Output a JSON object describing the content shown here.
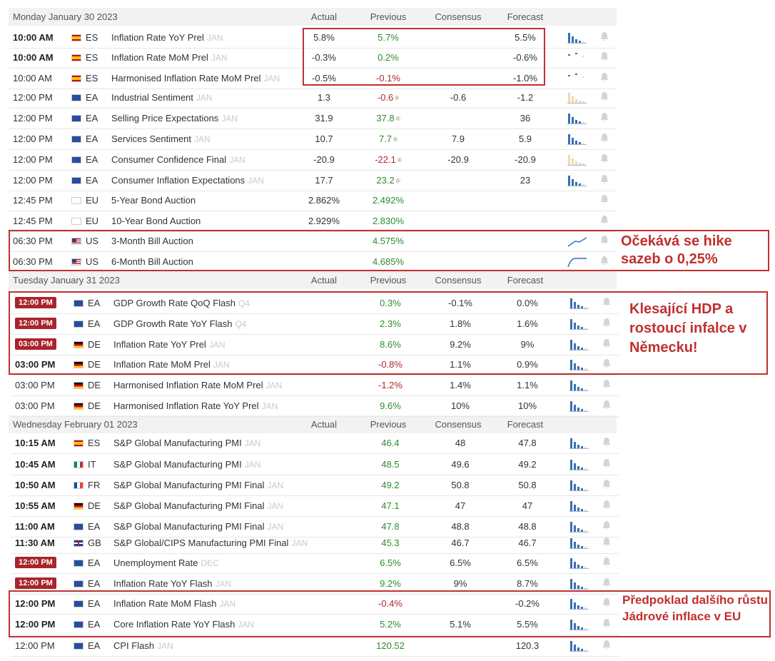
{
  "columns": {
    "actual": "Actual",
    "previous": "Previous",
    "consensus": "Consensus",
    "forecast": "Forecast"
  },
  "days": [
    {
      "title": "Monday January 30 2023"
    },
    {
      "title": "Tuesday January 31 2023"
    },
    {
      "title": "Wednesday February 01 2023"
    }
  ],
  "rows": [
    {
      "time": "10:00 AM",
      "country": "ES",
      "event": "Inflation Rate YoY Prel",
      "ref": "JAN",
      "actual": "5.8%",
      "previous": "5.7%",
      "consensus": "",
      "forecast": "5.5%"
    },
    {
      "time": "10:00 AM",
      "country": "ES",
      "event": "Inflation Rate MoM Prel",
      "ref": "JAN",
      "actual": "-0.3%",
      "previous": "0.2%",
      "consensus": "",
      "forecast": "-0.6%"
    },
    {
      "time": "10:00 AM",
      "country": "ES",
      "event": "Harmonised Inflation Rate MoM Prel",
      "ref": "JAN",
      "actual": "-0.5%",
      "previous": "-0.1%",
      "consensus": "",
      "forecast": "-1.0%"
    },
    {
      "time": "12:00 PM",
      "country": "EA",
      "event": "Industrial Sentiment",
      "ref": "JAN",
      "actual": "1.3",
      "previous": "-0.6",
      "consensus": "-0.6",
      "forecast": "-1.2"
    },
    {
      "time": "12:00 PM",
      "country": "EA",
      "event": "Selling Price Expectations",
      "ref": "JAN",
      "actual": "31.9",
      "previous": "37.8",
      "consensus": "",
      "forecast": "36"
    },
    {
      "time": "12:00 PM",
      "country": "EA",
      "event": "Services Sentiment",
      "ref": "JAN",
      "actual": "10.7",
      "previous": "7.7",
      "consensus": "7.9",
      "forecast": "5.9"
    },
    {
      "time": "12:00 PM",
      "country": "EA",
      "event": "Consumer Confidence Final",
      "ref": "JAN",
      "actual": "-20.9",
      "previous": "-22.1",
      "consensus": "-20.9",
      "forecast": "-20.9"
    },
    {
      "time": "12:00 PM",
      "country": "EA",
      "event": "Consumer Inflation Expectations",
      "ref": "JAN",
      "actual": "17.7",
      "previous": "23.2",
      "consensus": "",
      "forecast": "23"
    },
    {
      "time": "12:45 PM",
      "country": "EU",
      "event": "5-Year Bond Auction",
      "ref": "",
      "actual": "2.862%",
      "previous": "2.492%",
      "consensus": "",
      "forecast": ""
    },
    {
      "time": "12:45 PM",
      "country": "EU",
      "event": "10-Year Bond Auction",
      "ref": "",
      "actual": "2.929%",
      "previous": "2.830%",
      "consensus": "",
      "forecast": ""
    },
    {
      "time": "06:30 PM",
      "country": "US",
      "event": "3-Month Bill Auction",
      "ref": "",
      "actual": "",
      "previous": "4.575%",
      "consensus": "",
      "forecast": ""
    },
    {
      "time": "06:30 PM",
      "country": "US",
      "event": "6-Month Bill Auction",
      "ref": "",
      "actual": "",
      "previous": "4.685%",
      "consensus": "",
      "forecast": ""
    },
    {
      "time": "12:00 PM",
      "country": "EA",
      "event": "GDP Growth Rate QoQ Flash",
      "ref": "Q4",
      "actual": "",
      "previous": "0.3%",
      "consensus": "-0.1%",
      "forecast": "0.0%"
    },
    {
      "time": "12:00 PM",
      "country": "EA",
      "event": "GDP Growth Rate YoY Flash",
      "ref": "Q4",
      "actual": "",
      "previous": "2.3%",
      "consensus": "1.8%",
      "forecast": "1.6%"
    },
    {
      "time": "03:00 PM",
      "country": "DE",
      "event": "Inflation Rate YoY Prel",
      "ref": "JAN",
      "actual": "",
      "previous": "8.6%",
      "consensus": "9.2%",
      "forecast": "9%"
    },
    {
      "time": "03:00 PM",
      "country": "DE",
      "event": "Inflation Rate MoM Prel",
      "ref": "JAN",
      "actual": "",
      "previous": "-0.8%",
      "consensus": "1.1%",
      "forecast": "0.9%"
    },
    {
      "time": "03:00 PM",
      "country": "DE",
      "event": "Harmonised Inflation Rate MoM Prel",
      "ref": "JAN",
      "actual": "",
      "previous": "-1.2%",
      "consensus": "1.4%",
      "forecast": "1.1%"
    },
    {
      "time": "03:00 PM",
      "country": "DE",
      "event": "Harmonised Inflation Rate YoY Prel",
      "ref": "JAN",
      "actual": "",
      "previous": "9.6%",
      "consensus": "10%",
      "forecast": "10%"
    },
    {
      "time": "10:15 AM",
      "country": "ES",
      "event": "S&P Global Manufacturing PMI",
      "ref": "JAN",
      "actual": "",
      "previous": "46.4",
      "consensus": "48",
      "forecast": "47.8"
    },
    {
      "time": "10:45 AM",
      "country": "IT",
      "event": "S&P Global Manufacturing PMI",
      "ref": "JAN",
      "actual": "",
      "previous": "48.5",
      "consensus": "49.6",
      "forecast": "49.2"
    },
    {
      "time": "10:50 AM",
      "country": "FR",
      "event": "S&P Global Manufacturing PMI Final",
      "ref": "JAN",
      "actual": "",
      "previous": "49.2",
      "consensus": "50.8",
      "forecast": "50.8"
    },
    {
      "time": "10:55 AM",
      "country": "DE",
      "event": "S&P Global Manufacturing PMI Final",
      "ref": "JAN",
      "actual": "",
      "previous": "47.1",
      "consensus": "47",
      "forecast": "47"
    },
    {
      "time": "11:00 AM",
      "country": "EA",
      "event": "S&P Global Manufacturing PMI Final",
      "ref": "JAN",
      "actual": "",
      "previous": "47.8",
      "consensus": "48.8",
      "forecast": "48.8"
    },
    {
      "time": "11:30 AM",
      "country": "GB",
      "event": "S&P Global/CIPS Manufacturing PMI Final",
      "ref": "JAN",
      "actual": "",
      "previous": "45.3",
      "consensus": "46.7",
      "forecast": "46.7"
    },
    {
      "time": "12:00 PM",
      "country": "EA",
      "event": "Unemployment Rate",
      "ref": "DEC",
      "actual": "",
      "previous": "6.5%",
      "consensus": "6.5%",
      "forecast": "6.5%"
    },
    {
      "time": "12:00 PM",
      "country": "EA",
      "event": "Inflation Rate YoY Flash",
      "ref": "JAN",
      "actual": "",
      "previous": "9.2%",
      "consensus": "9%",
      "forecast": "8.7%"
    },
    {
      "time": "12:00 PM",
      "country": "EA",
      "event": "Inflation Rate MoM Flash",
      "ref": "JAN",
      "actual": "",
      "previous": "-0.4%",
      "consensus": "",
      "forecast": "-0.2%"
    },
    {
      "time": "12:00 PM",
      "country": "EA",
      "event": "Core Inflation Rate YoY Flash",
      "ref": "JAN",
      "actual": "",
      "previous": "5.2%",
      "consensus": "5.1%",
      "forecast": "5.5%"
    },
    {
      "time": "12:00 PM",
      "country": "EA",
      "event": "CPI Flash",
      "ref": "JAN",
      "actual": "",
      "previous": "120.52",
      "consensus": "",
      "forecast": "120.3"
    }
  ],
  "notes": {
    "hike": "Očekává se hike sazeb o 0,25%",
    "gdp": "Klesající HDP a rostoucí infalce v Německu!",
    "core": "Předpoklad dalšího růstu Jádrové inflace v EU"
  },
  "colors": {
    "annotation": "#c0302f",
    "badge": "#a8252b",
    "positive": "#2e8b2e",
    "negative": "#b02828"
  }
}
